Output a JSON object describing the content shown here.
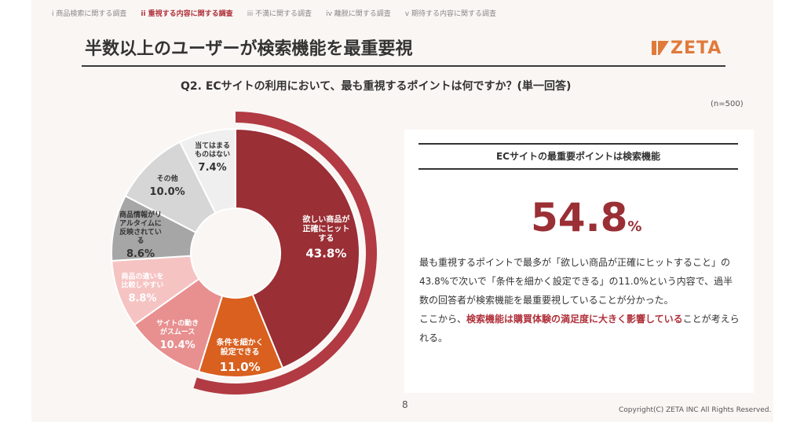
{
  "tabs": [
    {
      "label": "i 商品検索に関する調査",
      "active": false
    },
    {
      "label": "ii 重視する内容に関する調査",
      "active": true
    },
    {
      "label": "iii 不満に関する調査",
      "active": false
    },
    {
      "label": "iv 離脱に関する調査",
      "active": false
    },
    {
      "label": "v 期待する内容に関する調査",
      "active": false
    }
  ],
  "title": "半数以上のユーザーが検索機能を最重要視",
  "logo": "ZETA",
  "question": "Q2. ECサイトの利用において、最も重視するポイントは何ですか？(単一回答)",
  "sample_size": "(n=500)",
  "panel": {
    "heading": "ECサイトの最重要ポイントは検索機能",
    "big_value": "54.8",
    "big_unit": "%",
    "body_1": "最も重視するポイントで最多が「欲しい商品が正確にヒットすること」の43.8%で次いで「条件を細かく設定できる」の11.0%という内容で、過半数の回答者が検索機能を最重要視していることが分かった。",
    "body_2a": "ここから、",
    "body_2b": "検索機能は購買体験の満足度に大きく影響している",
    "body_2c": "ことが考えられる。"
  },
  "page_number": "8",
  "copyright": "Copyright(C) ZETA INC All Rights Reserved.",
  "chart_data": {
    "type": "pie",
    "variant": "donut",
    "start": "12 o'clock, clockwise",
    "slices": [
      {
        "label": "欲しい商品が正確にヒットする",
        "value": 43.8,
        "color": "#9a2f35",
        "text_color": "#ffffff"
      },
      {
        "label": "条件を細かく設定できる",
        "value": 11.0,
        "color": "#d9601f",
        "text_color": "#ffffff"
      },
      {
        "label": "サイトの動きがスムース",
        "value": 10.4,
        "color": "#e88f8f",
        "text_color": "#ffffff"
      },
      {
        "label": "商品の違いを比較しやすい",
        "value": 8.8,
        "color": "#f6c3c3",
        "text_color": "#ffffff"
      },
      {
        "label": "商品情報がリアルタイムに反映されている",
        "value": 8.6,
        "color": "#a6a6a6",
        "text_color": "#333333"
      },
      {
        "label": "その他",
        "value": 10.0,
        "color": "#d6d6d6",
        "text_color": "#333333"
      },
      {
        "label": "当てはまるものはない",
        "value": 7.4,
        "color": "#efefef",
        "text_color": "#333333"
      }
    ],
    "value_suffix": "%",
    "highlight_group": {
      "label": "検索機能",
      "value": 54.8,
      "color": "#b13a43"
    }
  }
}
